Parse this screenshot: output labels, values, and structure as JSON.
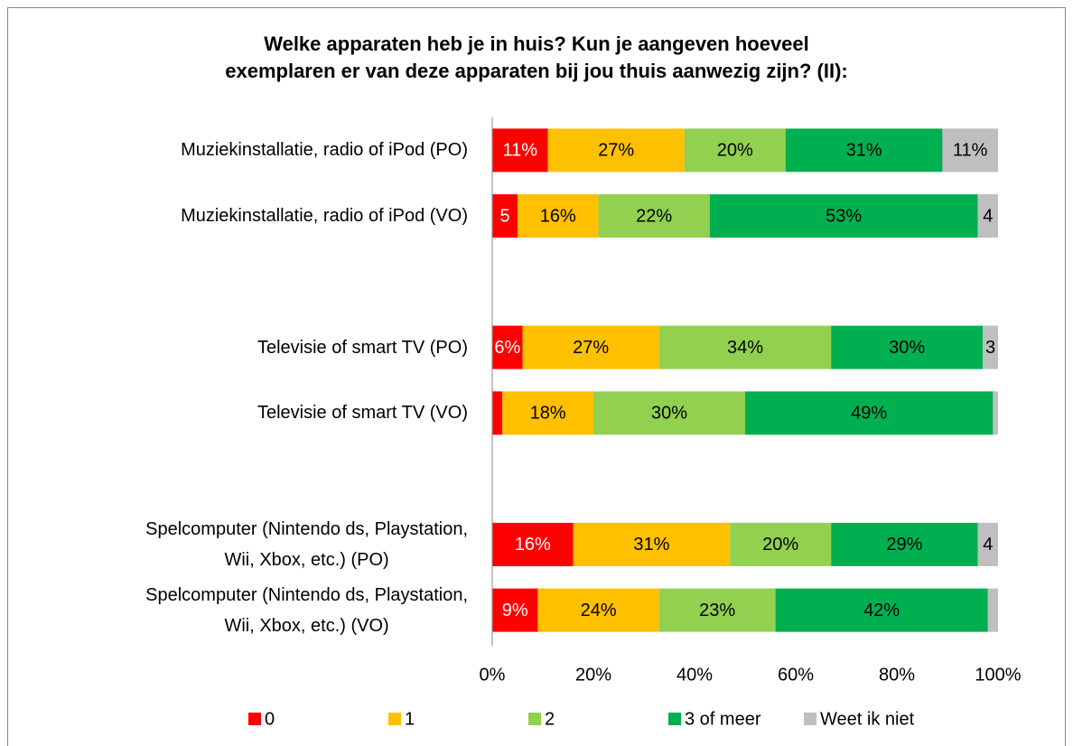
{
  "chart_data": {
    "type": "stacked-barh",
    "title": "Welke apparaten heb je in huis? Kun je aangeven hoeveel\nexemplaren er van deze apparaten bij jou thuis aanwezig zijn? (II):",
    "categories": [
      "Muziekinstallatie, radio of iPod  (PO)",
      "Muziekinstallatie, radio of iPod  (VO)",
      null,
      "Televisie of smart TV  (PO)",
      "Televisie of smart TV  (VO)",
      null,
      "Spelcomputer (Nintendo ds, Playstation,\nWii, Xbox, etc.)  (PO)",
      "Spelcomputer (Nintendo ds, Playstation,\nWii, Xbox, etc.)  (VO)"
    ],
    "series": [
      {
        "name": "0",
        "color": "#ff0000",
        "values": [
          11,
          5,
          null,
          6,
          2,
          null,
          16,
          9
        ],
        "value_labels": [
          "11%",
          "5",
          null,
          "6%",
          null,
          null,
          "16%",
          "9%"
        ]
      },
      {
        "name": "1",
        "color": "#ffc000",
        "values": [
          27,
          16,
          null,
          27,
          18,
          null,
          31,
          24
        ],
        "value_labels": [
          "27%",
          "16%",
          null,
          "27%",
          "18%",
          null,
          "31%",
          "24%"
        ]
      },
      {
        "name": "2",
        "color": "#92d050",
        "values": [
          20,
          22,
          null,
          34,
          30,
          null,
          20,
          23
        ],
        "value_labels": [
          "20%",
          "22%",
          null,
          "34%",
          "30%",
          null,
          "20%",
          "23%"
        ]
      },
      {
        "name": "3 of meer",
        "color": "#00b050",
        "values": [
          31,
          53,
          null,
          30,
          49,
          null,
          29,
          42
        ],
        "value_labels": [
          "31%",
          "53%",
          null,
          "30%",
          "49%",
          null,
          "29%",
          "42%"
        ]
      },
      {
        "name": "Weet ik niet",
        "color": "#bfbfbf",
        "values": [
          11,
          4,
          null,
          3,
          1,
          null,
          4,
          2
        ],
        "value_labels": [
          "11%",
          "4",
          null,
          "3",
          null,
          null,
          "4",
          null
        ]
      }
    ],
    "xlim": [
      0,
      100
    ],
    "xticks": [
      {
        "value": 0,
        "label": "0%"
      },
      {
        "value": 20,
        "label": "20%"
      },
      {
        "value": 40,
        "label": "40%"
      },
      {
        "value": 60,
        "label": "60%"
      },
      {
        "value": 80,
        "label": "80%"
      },
      {
        "value": 100,
        "label": "100%"
      }
    ],
    "legend": "bottom"
  }
}
